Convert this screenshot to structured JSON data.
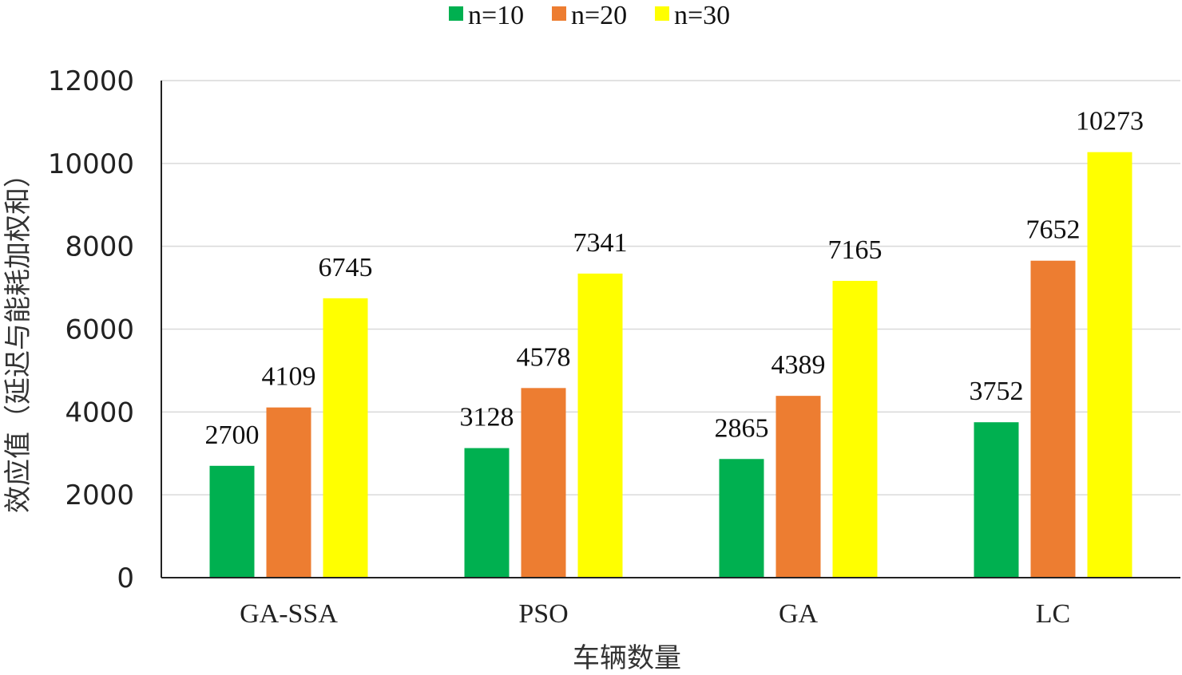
{
  "chart_data": {
    "type": "bar",
    "title": "",
    "xlabel": "车辆数量",
    "ylabel": "效应值（延迟与能耗加权和）",
    "categories": [
      "GA-SSA",
      "PSO",
      "GA",
      "LC"
    ],
    "series": [
      {
        "name": "n=10",
        "color": "#00b050",
        "values": [
          2700,
          3128,
          2865,
          3752
        ]
      },
      {
        "name": "n=20",
        "color": "#ed7d31",
        "values": [
          4109,
          4578,
          4389,
          7652
        ]
      },
      {
        "name": "n=30",
        "color": "#ffff00",
        "values": [
          6745,
          7341,
          7165,
          10273
        ]
      }
    ],
    "ylim": [
      0,
      12000
    ],
    "yticks": [
      0,
      2000,
      4000,
      6000,
      8000,
      10000,
      12000
    ],
    "grid": true,
    "legend_position": "top-center",
    "data_labels": true
  }
}
